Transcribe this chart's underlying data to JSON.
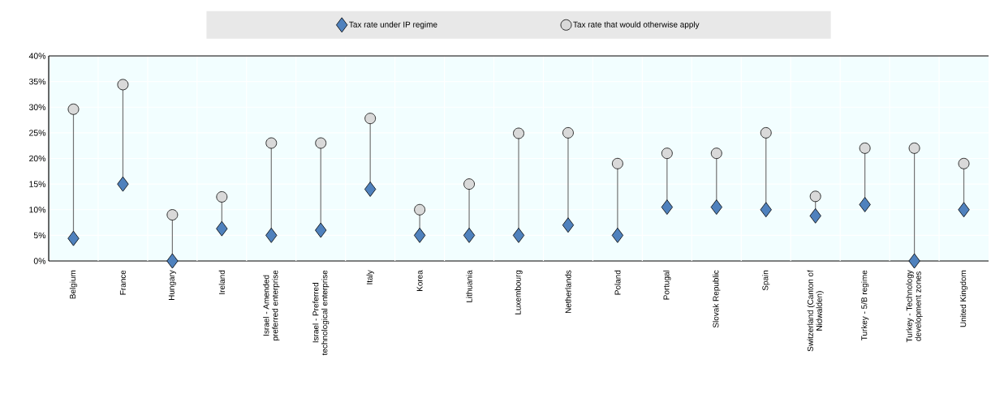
{
  "chart_data": {
    "type": "scatter",
    "categories": [
      "Belgium",
      "France",
      "Hungary",
      "Ireland",
      "Israel - Amended preferred enterprise",
      "Israel - Preferred technological enterprise",
      "Italy",
      "Korea",
      "Lithuania",
      "Luxembourg",
      "Netherlands",
      "Poland",
      "Portugal",
      "Slovak Republic",
      "Spain",
      "Switzerland (Canton of Nidwalden)",
      "Turkey - 5/B regime",
      "Turkey - Technology development zones",
      "United Kingdom"
    ],
    "series": [
      {
        "name": "Tax rate under IP regime",
        "color": "#4f81bd",
        "marker": "diamond",
        "values": [
          4.4,
          15,
          0,
          6.3,
          5,
          6,
          14,
          5,
          5,
          5,
          7,
          5,
          10.5,
          10.5,
          10,
          8.8,
          11,
          0,
          10
        ]
      },
      {
        "name": "Tax rate that would otherwise apply",
        "color": "#d9d9d9",
        "marker": "circle",
        "values": [
          29.6,
          34.4,
          9,
          12.5,
          23,
          23,
          27.8,
          10,
          15,
          24.9,
          25,
          19,
          21,
          21,
          25,
          12.6,
          22,
          22,
          19
        ]
      }
    ],
    "ylim": [
      0,
      40
    ],
    "yticks": [
      {
        "value": 0,
        "label": "0%"
      },
      {
        "value": 5,
        "label": "5%"
      },
      {
        "value": 10,
        "label": "10%"
      },
      {
        "value": 15,
        "label": "15%"
      },
      {
        "value": 20,
        "label": "20%"
      },
      {
        "value": 25,
        "label": "25%"
      },
      {
        "value": 30,
        "label": "30%"
      },
      {
        "value": 35,
        "label": "35%"
      },
      {
        "value": 40,
        "label": "40%"
      }
    ],
    "grid": true,
    "legend": "top"
  }
}
